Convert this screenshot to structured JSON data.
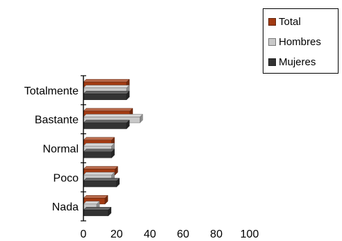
{
  "chart_data": {
    "type": "bar",
    "orientation": "horizontal",
    "style": "3d-clustered",
    "categories": [
      "Totalmente",
      "Bastante",
      "Normal",
      "Poco",
      "Nada"
    ],
    "series": [
      {
        "name": "Total",
        "values": [
          26,
          28,
          17,
          19,
          13
        ],
        "color": "#a23a12"
      },
      {
        "name": "Hombres",
        "values": [
          26,
          34,
          17,
          17,
          8
        ],
        "color": "#c8c8c8"
      },
      {
        "name": "Mujeres",
        "values": [
          26,
          26,
          17,
          20,
          15
        ],
        "color": "#333333"
      }
    ],
    "title": "",
    "xlabel": "",
    "ylabel": "",
    "xlim": [
      0,
      100
    ],
    "xticks": [
      "0",
      "20",
      "40",
      "60",
      "80",
      "100"
    ],
    "grid": false,
    "legend": "top-right"
  }
}
